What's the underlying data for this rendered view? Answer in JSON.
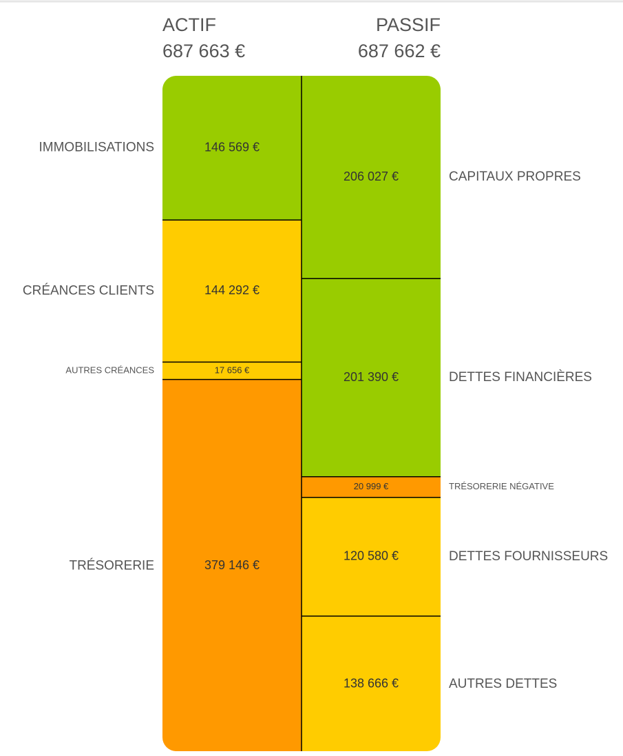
{
  "chart_data": {
    "type": "balance",
    "columns": [
      {
        "title": "ACTIF",
        "total": 687663,
        "total_label": "687 663 €",
        "segments": [
          {
            "name": "IMMOBILISATIONS",
            "value": 146569,
            "value_label": "146 569 €",
            "color": "#99cc00"
          },
          {
            "name": "CRÉANCES CLIENTS",
            "value": 144292,
            "value_label": "144 292 €",
            "color": "#ffcc00"
          },
          {
            "name": "AUTRES CRÉANCES",
            "value": 17656,
            "value_label": "17 656 €",
            "color": "#ffcc00"
          },
          {
            "name": "TRÉSORERIE",
            "value": 379146,
            "value_label": "379 146 €",
            "color": "#ff9900"
          }
        ]
      },
      {
        "title": "PASSIF",
        "total": 687662,
        "total_label": "687 662 €",
        "segments": [
          {
            "name": "CAPITAUX PROPRES",
            "value": 206027,
            "value_label": "206 027 €",
            "color": "#99cc00"
          },
          {
            "name": "DETTES FINANCIÈRES",
            "value": 201390,
            "value_label": "201 390 €",
            "color": "#99cc00"
          },
          {
            "name": "TRÉSORERIE NÉGATIVE",
            "value": 20999,
            "value_label": "20 999 €",
            "color": "#ff9900"
          },
          {
            "name": "DETTES FOURNISSEURS",
            "value": 120580,
            "value_label": "120 580 €",
            "color": "#ffcc00"
          },
          {
            "name": "AUTRES DETTES",
            "value": 138666,
            "value_label": "138 666 €",
            "color": "#ffcc00"
          }
        ]
      }
    ]
  }
}
